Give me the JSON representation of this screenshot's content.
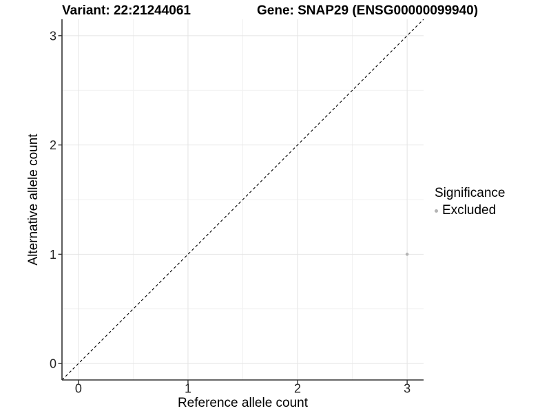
{
  "chart_data": {
    "type": "scatter",
    "title_left": "Variant: 22:21244061",
    "title_right": "Gene: SNAP29 (ENSG00000099940)",
    "xlabel": "Reference allele count",
    "ylabel": "Alternative allele count",
    "xlim": [
      -0.15,
      3.15
    ],
    "ylim": [
      -0.15,
      3.15
    ],
    "xticks": [
      0,
      1,
      2,
      3
    ],
    "yticks": [
      0,
      1,
      2,
      3
    ],
    "x_minor_ticks": [
      0.5,
      1.5,
      2.5
    ],
    "y_minor_ticks": [
      0.5,
      1.5,
      2.5
    ],
    "grid": "major and minor gridlines on white panel",
    "points": [
      {
        "x": 3,
        "y": 1,
        "series": "Excluded"
      }
    ],
    "reference_line": {
      "type": "identity",
      "linetype": "dashed",
      "color": "#000000"
    },
    "legend": {
      "title": "Significance",
      "position": "right",
      "items": [
        {
          "label": "Excluded",
          "color": "#b4b4b4"
        }
      ]
    },
    "colors": {
      "point": "#b4b4b4",
      "axis_line": "#333333",
      "tick_label": "#262626",
      "grid_major": "#e4e4e4",
      "grid_minor": "#f1f1f1",
      "background": "#ffffff",
      "title_text": "#000000"
    }
  }
}
